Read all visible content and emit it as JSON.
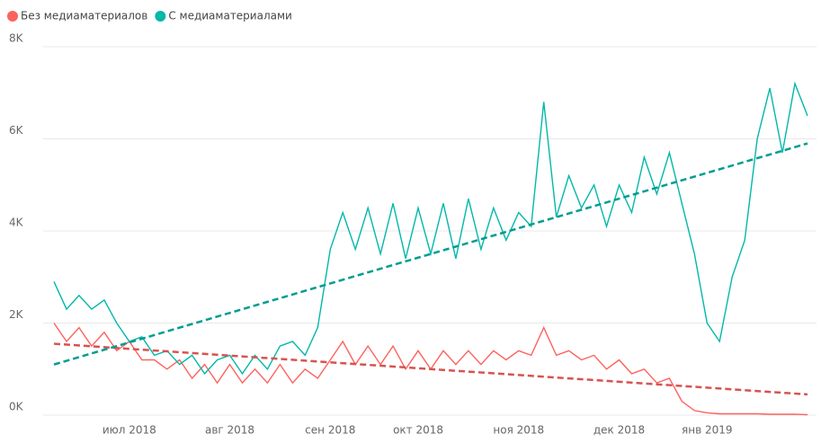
{
  "chart_data": {
    "type": "line",
    "categories": [
      null,
      null,
      null,
      null,
      null,
      null,
      "июл 2018",
      null,
      null,
      null,
      null,
      null,
      null,
      null,
      "авг 2018",
      null,
      null,
      null,
      null,
      null,
      null,
      null,
      "сен 2018",
      null,
      null,
      null,
      null,
      null,
      null,
      "окт 2018",
      null,
      null,
      null,
      null,
      null,
      null,
      null,
      "ноя 2018",
      null,
      null,
      null,
      null,
      null,
      null,
      null,
      "дек 2018",
      null,
      null,
      null,
      null,
      null,
      null,
      "янв 2019",
      null,
      null,
      null,
      null,
      null,
      null,
      null,
      null
    ],
    "series": [
      {
        "name": "Без медиаматериалов",
        "color": "#fd625e",
        "trend": [
          1550,
          450
        ],
        "values": [
          2000,
          1600,
          1900,
          1500,
          1800,
          1400,
          1600,
          1200,
          1200,
          1000,
          1200,
          800,
          1100,
          700,
          1100,
          700,
          1000,
          700,
          1100,
          700,
          1000,
          800,
          1200,
          1600,
          1100,
          1500,
          1100,
          1500,
          1000,
          1400,
          1000,
          1400,
          1100,
          1400,
          1100,
          1400,
          1200,
          1400,
          1300,
          1900,
          1300,
          1400,
          1200,
          1300,
          1000,
          1200,
          900,
          1000,
          700,
          800,
          300,
          100,
          50,
          30,
          30,
          30,
          30,
          20,
          20,
          20,
          10
        ]
      },
      {
        "name": "С медиаматериалами",
        "color": "#01b8aa",
        "trend": [
          1100,
          5900
        ],
        "values": [
          2900,
          2300,
          2600,
          2300,
          2500,
          2000,
          1600,
          1700,
          1300,
          1400,
          1100,
          1300,
          900,
          1200,
          1300,
          900,
          1300,
          1000,
          1500,
          1600,
          1300,
          1900,
          3600,
          4400,
          3600,
          4500,
          3500,
          4600,
          3400,
          4500,
          3500,
          4600,
          3400,
          4700,
          3600,
          4500,
          3800,
          4400,
          4100,
          6800,
          4300,
          5200,
          4500,
          5000,
          4100,
          5000,
          4400,
          5600,
          4800,
          5700,
          4600,
          3500,
          2000,
          1600,
          3000,
          3800,
          6000,
          7100,
          5700,
          7200,
          6500
        ]
      }
    ],
    "ylim": [
      0,
      8000
    ],
    "yticks": [
      {
        "value": 0,
        "label": "0K"
      },
      {
        "value": 2000,
        "label": "2K"
      },
      {
        "value": 4000,
        "label": "4K"
      },
      {
        "value": 6000,
        "label": "6K"
      },
      {
        "value": 8000,
        "label": "8K"
      }
    ],
    "grid": true
  }
}
